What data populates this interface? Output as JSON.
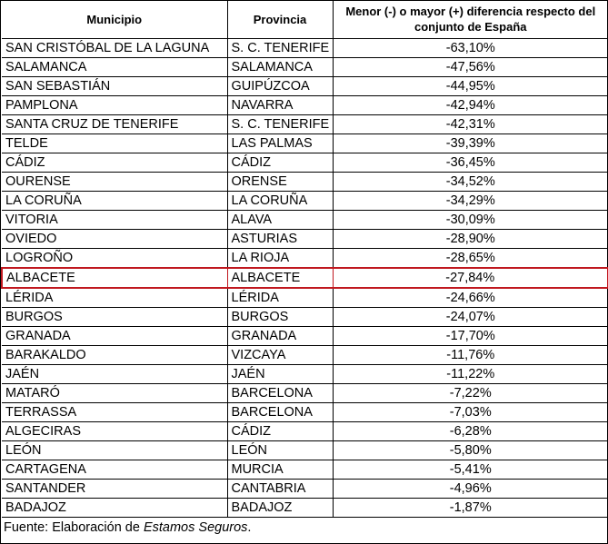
{
  "table": {
    "headers": {
      "municipio": "Municipio",
      "provincia": "Provincia",
      "diferencia": "Menor (-) o mayor (+) diferencia respecto del conjunto de España"
    },
    "rows": [
      {
        "municipio": "SAN CRISTÓBAL DE LA LAGUNA",
        "provincia": "S. C. TENERIFE",
        "diferencia": "-63,10%"
      },
      {
        "municipio": "SALAMANCA",
        "provincia": "SALAMANCA",
        "diferencia": "-47,56%"
      },
      {
        "municipio": "SAN SEBASTIÁN",
        "provincia": "GUIPÚZCOA",
        "diferencia": "-44,95%"
      },
      {
        "municipio": "PAMPLONA",
        "provincia": "NAVARRA",
        "diferencia": "-42,94%"
      },
      {
        "municipio": "SANTA CRUZ DE TENERIFE",
        "provincia": "S. C. TENERIFE",
        "diferencia": "-42,31%"
      },
      {
        "municipio": "TELDE",
        "provincia": "LAS PALMAS",
        "diferencia": "-39,39%"
      },
      {
        "municipio": "CÁDIZ",
        "provincia": "CÁDIZ",
        "diferencia": "-36,45%"
      },
      {
        "municipio": "OURENSE",
        "provincia": "ORENSE",
        "diferencia": "-34,52%"
      },
      {
        "municipio": "LA CORUÑA",
        "provincia": "LA CORUÑA",
        "diferencia": "-34,29%"
      },
      {
        "municipio": "VITORIA",
        "provincia": "ALAVA",
        "diferencia": "-30,09%"
      },
      {
        "municipio": "OVIEDO",
        "provincia": "ASTURIAS",
        "diferencia": "-28,90%"
      },
      {
        "municipio": "LOGROÑO",
        "provincia": "LA RIOJA",
        "diferencia": "-28,65%"
      },
      {
        "municipio": "ALBACETE",
        "provincia": "ALBACETE",
        "diferencia": "-27,84%",
        "highlighted": true
      },
      {
        "municipio": "LÉRIDA",
        "provincia": "LÉRIDA",
        "diferencia": "-24,66%"
      },
      {
        "municipio": "BURGOS",
        "provincia": "BURGOS",
        "diferencia": "-24,07%"
      },
      {
        "municipio": "GRANADA",
        "provincia": "GRANADA",
        "diferencia": "-17,70%"
      },
      {
        "municipio": "BARAKALDO",
        "provincia": "VIZCAYA",
        "diferencia": "-11,76%"
      },
      {
        "municipio": "JAÉN",
        "provincia": "JAÉN",
        "diferencia": "-11,22%"
      },
      {
        "municipio": "MATARÓ",
        "provincia": "BARCELONA",
        "diferencia": "-7,22%"
      },
      {
        "municipio": "TERRASSA",
        "provincia": "BARCELONA",
        "diferencia": "-7,03%"
      },
      {
        "municipio": "ALGECIRAS",
        "provincia": "CÁDIZ",
        "diferencia": "-6,28%"
      },
      {
        "municipio": "LEÓN",
        "provincia": "LEÓN",
        "diferencia": "-5,80%"
      },
      {
        "municipio": "CARTAGENA",
        "provincia": "MURCIA",
        "diferencia": "-5,41%"
      },
      {
        "municipio": "SANTANDER",
        "provincia": "CANTABRIA",
        "diferencia": "-4,96%"
      },
      {
        "municipio": "BADAJOZ",
        "provincia": "BADAJOZ",
        "diferencia": "-1,87%"
      }
    ]
  },
  "footer": {
    "prefix": "Fuente: Elaboración de ",
    "source": "Estamos Seguros",
    "suffix": "."
  },
  "colors": {
    "highlight_border": "#c0181f"
  }
}
